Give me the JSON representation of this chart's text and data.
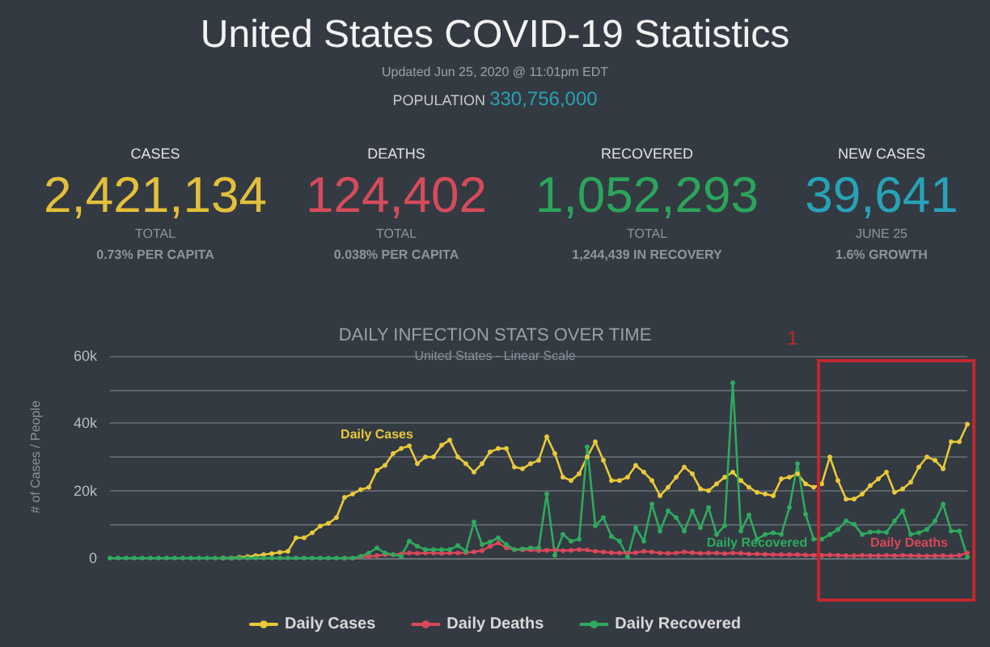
{
  "chart_data": [
    {
      "type": "other",
      "title": "United States COVID-19 Statistics",
      "subtitle": "Updated Jun 25, 2020 @ 11:01pm EDT",
      "annotations": [
        "POPULATION",
        "330,756,000",
        "CASES",
        "2,421,134",
        "TOTAL",
        "0.73% PER CAPITA",
        "DEATHS",
        "124,402",
        "TOTAL",
        "0.038% PER CAPITA",
        "RECOVERED",
        "1,052,293",
        "TOTAL",
        "1,244,439 IN RECOVERY",
        "NEW CASES",
        "39,641",
        "JUNE 25",
        "1.6% GROWTH"
      ],
      "colors": [
        "#2aa0b5",
        "#e3c03a",
        "#d64b5b",
        "#2aa55b",
        "#27a3b8"
      ]
    },
    {
      "type": "line",
      "title": "DAILY INFECTION STATS OVER TIME",
      "subtitle": "United States - Linear Scale",
      "ylabel": "# of Cases / People",
      "categories": [
        null,
        null,
        null,
        null,
        null,
        null,
        null,
        null,
        null,
        null,
        null,
        null,
        null,
        null,
        null,
        null,
        null,
        null,
        null,
        null,
        null,
        null,
        null,
        null,
        null,
        null,
        null,
        null,
        null,
        null,
        null,
        null,
        null,
        null,
        null,
        null,
        null,
        null,
        null,
        null,
        null,
        null,
        null,
        null,
        null,
        null,
        null,
        null,
        null,
        null,
        null,
        null,
        null,
        null,
        null,
        null,
        null,
        null,
        null,
        null,
        null,
        null,
        null,
        null,
        null,
        null,
        null,
        null,
        null,
        null,
        null,
        null,
        null,
        null,
        null,
        null,
        null,
        null,
        null,
        null,
        null,
        null,
        null,
        null,
        null,
        null,
        null,
        null,
        null,
        null,
        null,
        null,
        null,
        null,
        null,
        null,
        null,
        null,
        null,
        null,
        null,
        null,
        null,
        null,
        null,
        null,
        null
      ],
      "series": [
        {
          "name": "Daily Cases",
          "color": "#e8c93a",
          "values": [
            null,
            null,
            null,
            null,
            null,
            null,
            null,
            null,
            null,
            null,
            null,
            null,
            null,
            null,
            0,
            0,
            200,
            400,
            700,
            1000,
            1300,
            1700,
            2000,
            6000,
            6000,
            7500,
            9500,
            10300,
            12000,
            18000,
            19000,
            20300,
            21000,
            26000,
            27500,
            31000,
            32500,
            33300,
            28000,
            30000,
            30000,
            33500,
            35000,
            30000,
            28000,
            25500,
            28000,
            31500,
            32500,
            32500,
            27000,
            26500,
            28000,
            29000,
            36000,
            31000,
            24000,
            23000,
            25000,
            30000,
            34500,
            29000,
            23000,
            23000,
            24000,
            27500,
            25500,
            23000,
            18500,
            21000,
            24000,
            27000,
            25000,
            20500,
            20000,
            22000,
            24000,
            25500,
            23000,
            21000,
            19500,
            19000,
            18500,
            23500,
            24000,
            25000,
            22000,
            21000,
            22000,
            30000,
            23000,
            17500,
            17500,
            19000,
            21500,
            23500,
            25500,
            19500,
            20500,
            22500,
            27000,
            30000,
            29000,
            26500,
            34500,
            34500,
            39700
          ]
        },
        {
          "name": "Daily Deaths",
          "color": "#d9475a",
          "values": [
            null,
            null,
            null,
            null,
            null,
            null,
            null,
            null,
            null,
            null,
            null,
            null,
            null,
            null,
            null,
            null,
            null,
            null,
            null,
            null,
            null,
            null,
            null,
            null,
            null,
            null,
            null,
            null,
            null,
            0,
            0,
            300,
            500,
            700,
            1000,
            1000,
            1200,
            1500,
            1400,
            1500,
            1500,
            1400,
            1500,
            1500,
            1600,
            1800,
            2200,
            3500,
            4500,
            3000,
            2500,
            2400,
            2400,
            2200,
            2300,
            2400,
            2200,
            2300,
            2500,
            2400,
            2000,
            1800,
            1600,
            1500,
            1500,
            1600,
            2000,
            1800,
            1500,
            1400,
            1500,
            1800,
            1600,
            1400,
            1500,
            1500,
            1300,
            1500,
            1400,
            1200,
            1200,
            1100,
            1000,
            1000,
            1000,
            1000,
            900,
            800,
            800,
            900,
            800,
            700,
            700,
            800,
            700,
            700,
            800,
            700,
            800,
            700,
            700,
            600,
            700,
            700,
            600,
            800,
            1500
          ]
        },
        {
          "name": "Daily Recovered",
          "color": "#2eaa5e",
          "values": [
            0,
            0,
            0,
            0,
            0,
            0,
            0,
            0,
            0,
            0,
            0,
            0,
            0,
            0,
            0,
            0,
            0,
            0,
            0,
            0,
            0,
            0,
            0,
            0,
            0,
            0,
            0,
            0,
            0,
            0,
            0,
            500,
            1500,
            3000,
            1500,
            1000,
            500,
            5000,
            3500,
            2500,
            2500,
            2500,
            2500,
            3700,
            2000,
            10700,
            4000,
            4800,
            6000,
            4000,
            2500,
            2700,
            3000,
            3000,
            19000,
            800,
            7000,
            5000,
            5600,
            33000,
            9600,
            12000,
            6400,
            5000,
            300,
            9000,
            5000,
            16000,
            8000,
            14000,
            12000,
            8000,
            14000,
            9000,
            15000,
            7000,
            9600,
            52000,
            8000,
            12800,
            5600,
            7000,
            7500,
            7000,
            15000,
            28000,
            13000,
            5600,
            5600,
            7000,
            8500,
            11000,
            10000,
            7000,
            7700,
            7800,
            7600,
            11000,
            14000,
            7000,
            7500,
            8500,
            11000,
            16000,
            8000,
            8000,
            300
          ]
        }
      ],
      "ylim": [
        0,
        60000
      ],
      "yticks": [
        0,
        {
          "value": 20000,
          "label": "20k"
        },
        {
          "value": 40000,
          "label": "40k"
        },
        {
          "value": 60000,
          "label": "60k"
        }
      ],
      "grid": "y",
      "legend": "bottom",
      "marker": "circle",
      "annotations": [
        "Daily Cases",
        "Daily Recovered",
        "Daily Deaths",
        "1"
      ]
    }
  ]
}
